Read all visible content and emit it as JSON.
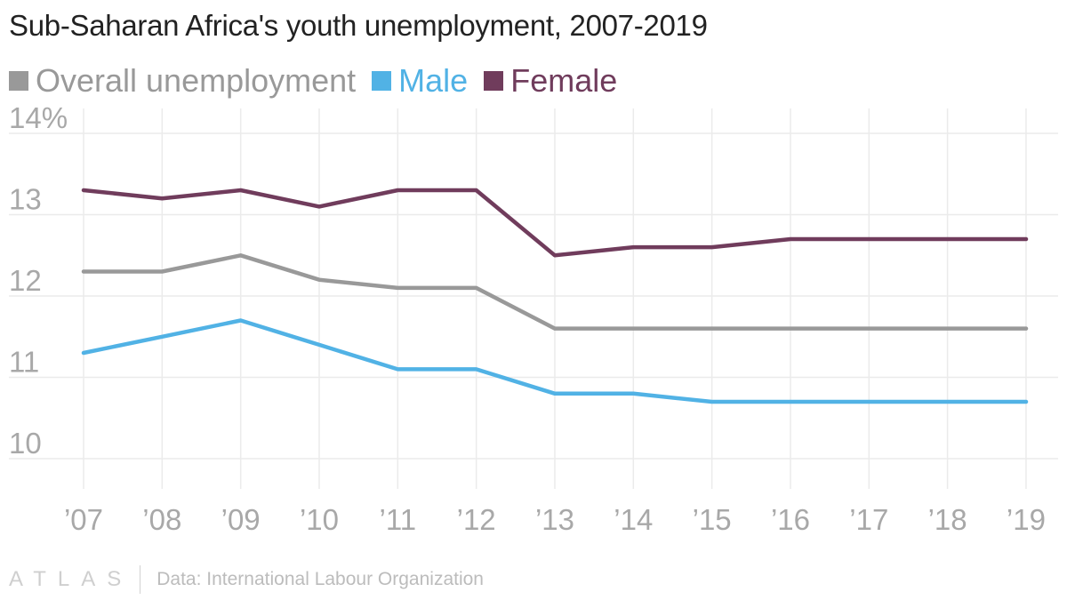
{
  "chart_data": {
    "type": "line",
    "title": "Sub-Saharan Africa's youth unemployment, 2007-2019",
    "categories": [
      "’07",
      "’08",
      "’09",
      "’10",
      "’11",
      "’12",
      "’13",
      "’14",
      "’15",
      "’16",
      "’17",
      "’18",
      "’19"
    ],
    "series": [
      {
        "name": "Overall unemployment",
        "color": "#999999",
        "values": [
          12.3,
          12.3,
          12.5,
          12.2,
          12.1,
          12.1,
          11.6,
          11.6,
          11.6,
          11.6,
          11.6,
          11.6,
          11.6
        ]
      },
      {
        "name": "Male",
        "color": "#51b2e5",
        "values": [
          11.3,
          11.5,
          11.7,
          11.4,
          11.1,
          11.1,
          10.8,
          10.8,
          10.7,
          10.7,
          10.7,
          10.7,
          10.7
        ]
      },
      {
        "name": "Female",
        "color": "#703c5c",
        "values": [
          13.3,
          13.2,
          13.3,
          13.1,
          13.3,
          13.3,
          12.5,
          12.6,
          12.6,
          12.7,
          12.7,
          12.7,
          12.7
        ]
      }
    ],
    "yticks": [
      "10",
      "11",
      "12",
      "13",
      "14%"
    ],
    "ylim": [
      10,
      14
    ],
    "xlabel": "",
    "ylabel": "",
    "grid": true,
    "legend_position": "top-left"
  },
  "footer": {
    "logo": "ATLAS",
    "source": "Data: International Labour Organization"
  }
}
